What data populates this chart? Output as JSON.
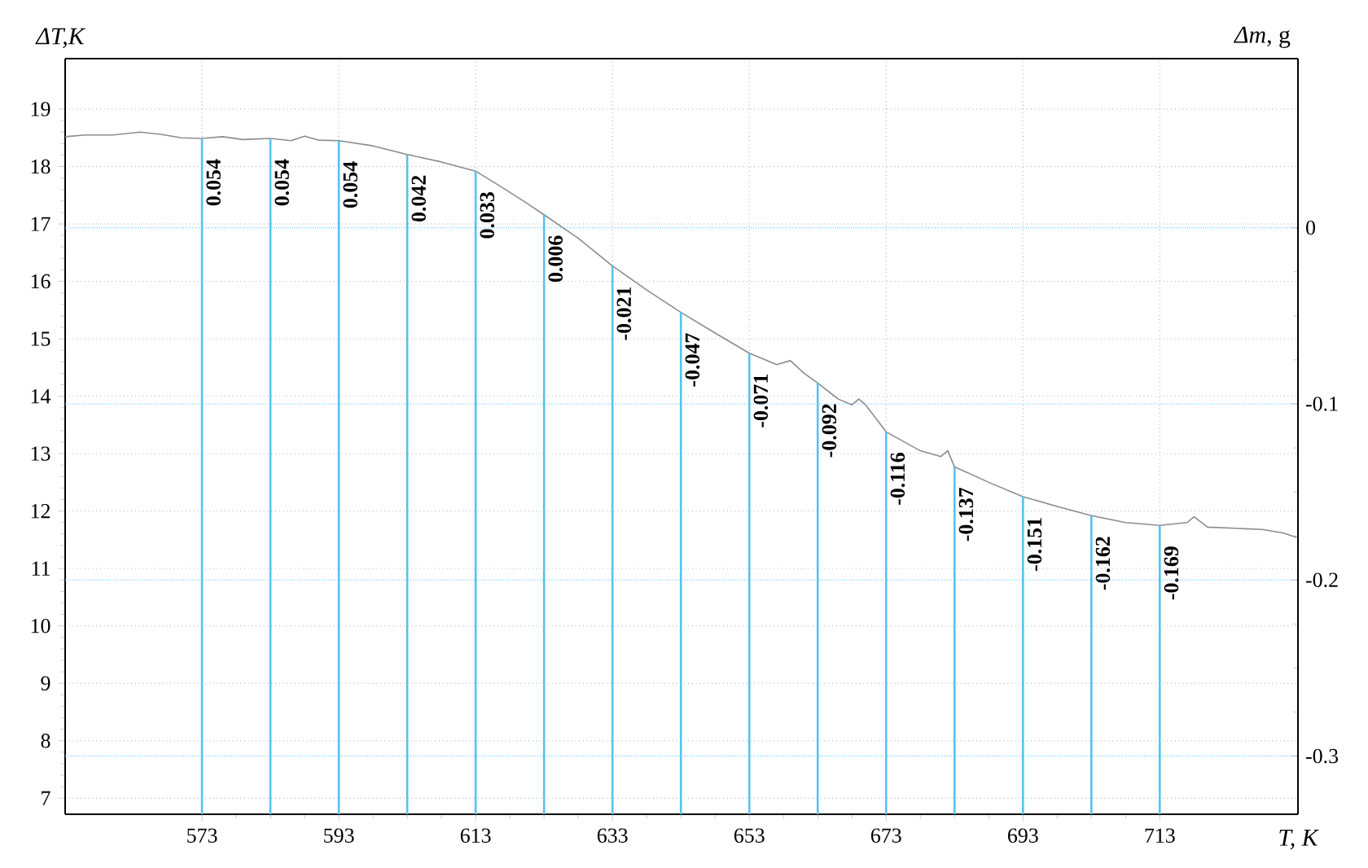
{
  "chart_data": {
    "type": "line",
    "xlabel": "T, K",
    "ylabel": "ΔT,K",
    "y2label": "*Δm*, g",
    "xlim": [
      553,
      733.2
    ],
    "xticks": [
      573,
      593,
      613,
      633,
      653,
      673,
      693,
      713
    ],
    "ylim": [
      6.72,
      19.88
    ],
    "yticks": [
      7,
      8,
      9,
      10,
      11,
      12,
      13,
      14,
      15,
      16,
      17,
      18,
      19
    ],
    "y2lim": [
      -0.333,
      0.096
    ],
    "y2ticks": [
      0,
      -0.1,
      -0.2,
      -0.3
    ],
    "grid": true,
    "series": [
      {
        "color": "#8c8c8c",
        "x": [
          553,
          556,
          560,
          564,
          567,
          570,
          573,
          576,
          579,
          583,
          586,
          588,
          590,
          593,
          598,
          603,
          608,
          613,
          616,
          620,
          623,
          628,
          633,
          638,
          643,
          648,
          653,
          657,
          659,
          661,
          663,
          666,
          668,
          669,
          670,
          673,
          678,
          681,
          682,
          683,
          688,
          693,
          698,
          703,
          708,
          713,
          717,
          718,
          720,
          724,
          728,
          731,
          733
        ],
        "values": [
          18.52,
          18.55,
          18.55,
          18.6,
          18.56,
          18.5,
          18.49,
          18.52,
          18.47,
          18.49,
          18.45,
          18.53,
          18.46,
          18.45,
          18.36,
          18.21,
          18.08,
          17.92,
          17.7,
          17.4,
          17.16,
          16.75,
          16.27,
          15.85,
          15.46,
          15.1,
          14.75,
          14.55,
          14.62,
          14.4,
          14.23,
          13.95,
          13.85,
          13.95,
          13.85,
          13.38,
          13.05,
          12.95,
          13.05,
          12.77,
          12.5,
          12.25,
          12.08,
          11.92,
          11.8,
          11.75,
          11.8,
          11.9,
          11.72,
          11.7,
          11.68,
          11.62,
          11.54
        ]
      },
      {
        "type": "bar",
        "color": "#56c2ee",
        "x": [
          573,
          583,
          593,
          603,
          613,
          623,
          633,
          643,
          653,
          663,
          673,
          683,
          693,
          703,
          713
        ],
        "values": [
          18.49,
          18.49,
          18.45,
          18.21,
          17.92,
          17.16,
          16.27,
          15.46,
          14.75,
          14.23,
          13.38,
          12.77,
          12.25,
          11.92,
          11.75
        ]
      }
    ],
    "annotations": [
      "0.054",
      "0.054",
      "0.054",
      "0.042",
      "0.033",
      "0.006",
      "-0.021",
      "-0.047",
      "-0.071",
      "-0.092",
      "-0.116",
      "-0.137",
      "-0.151",
      "-0.162",
      "-0.169"
    ]
  }
}
